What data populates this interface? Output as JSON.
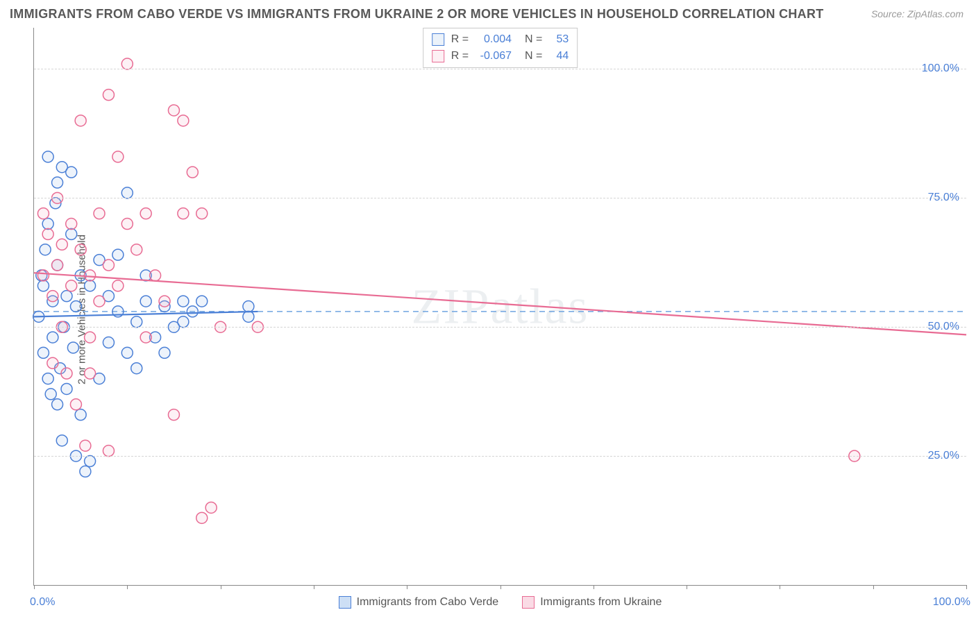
{
  "title": "IMMIGRANTS FROM CABO VERDE VS IMMIGRANTS FROM UKRAINE 2 OR MORE VEHICLES IN HOUSEHOLD CORRELATION CHART",
  "source": "Source: ZipAtlas.com",
  "watermark": "ZIPatlas",
  "ylabel": "2 or more Vehicles in Household",
  "chart": {
    "type": "scatter",
    "xlim": [
      0,
      100
    ],
    "ylim": [
      0,
      108
    ],
    "xticks": [
      0,
      10,
      20,
      30,
      40,
      50,
      60,
      70,
      80,
      90,
      100
    ],
    "xtick_labels": {
      "0": "0.0%",
      "100": "100.0%"
    },
    "ygrid": [
      25,
      50,
      75,
      100
    ],
    "ytick_labels": {
      "25": "25.0%",
      "50": "50.0%",
      "75": "75.0%",
      "100": "100.0%"
    },
    "background_color": "#ffffff",
    "grid_color": "#d5d5d5",
    "axis_color": "#888888",
    "label_color": "#555555",
    "tick_label_color": "#4a7fd6",
    "marker_radius": 8,
    "marker_stroke_width": 1.5,
    "marker_fill_opacity": 0.18,
    "dashed_line": {
      "color": "#6ea3e0",
      "y": 53,
      "dash": "8,6",
      "width": 1.5
    },
    "series": [
      {
        "name": "Immigrants from Cabo Verde",
        "stroke": "#4a7fd6",
        "fill": "#9abde8",
        "R": "0.004",
        "N": "53",
        "trend": {
          "x1": 0,
          "y1": 52,
          "x2": 24,
          "y2": 53,
          "width": 2.2
        },
        "points": [
          [
            0.5,
            52
          ],
          [
            0.8,
            60
          ],
          [
            1,
            45
          ],
          [
            1,
            58
          ],
          [
            1.2,
            65
          ],
          [
            1.5,
            70
          ],
          [
            1.5,
            40
          ],
          [
            1.8,
            37
          ],
          [
            2,
            55
          ],
          [
            2,
            48
          ],
          [
            2.3,
            74
          ],
          [
            2.5,
            62
          ],
          [
            2.5,
            35
          ],
          [
            2.8,
            42
          ],
          [
            3,
            28
          ],
          [
            3,
            81
          ],
          [
            3.2,
            50
          ],
          [
            3.5,
            56
          ],
          [
            3.5,
            38
          ],
          [
            4,
            80
          ],
          [
            4,
            68
          ],
          [
            4.2,
            46
          ],
          [
            4.5,
            25
          ],
          [
            4.5,
            54
          ],
          [
            5,
            60
          ],
          [
            5,
            33
          ],
          [
            5.5,
            22
          ],
          [
            6,
            24
          ],
          [
            6,
            58
          ],
          [
            7,
            63
          ],
          [
            7,
            40
          ],
          [
            8,
            56
          ],
          [
            8,
            47
          ],
          [
            9,
            53
          ],
          [
            9,
            64
          ],
          [
            10,
            45
          ],
          [
            10,
            76
          ],
          [
            11,
            51
          ],
          [
            11,
            42
          ],
          [
            12,
            55
          ],
          [
            12,
            60
          ],
          [
            13,
            48
          ],
          [
            14,
            54
          ],
          [
            14,
            45
          ],
          [
            15,
            50
          ],
          [
            16,
            55
          ],
          [
            16,
            51
          ],
          [
            17,
            53
          ],
          [
            18,
            55
          ],
          [
            23,
            52
          ],
          [
            23,
            54
          ],
          [
            2.5,
            78
          ],
          [
            1.5,
            83
          ]
        ]
      },
      {
        "name": "Immigrants from Ukraine",
        "stroke": "#e86b93",
        "fill": "#f5b3c6",
        "R": "-0.067",
        "N": "44",
        "trend": {
          "x1": 0,
          "y1": 60.5,
          "x2": 100,
          "y2": 48.5,
          "width": 2.2
        },
        "points": [
          [
            1,
            60
          ],
          [
            1,
            72
          ],
          [
            1.5,
            68
          ],
          [
            2,
            56
          ],
          [
            2,
            43
          ],
          [
            2.5,
            62
          ],
          [
            2.5,
            75
          ],
          [
            3,
            66
          ],
          [
            3,
            50
          ],
          [
            3.5,
            41
          ],
          [
            4,
            58
          ],
          [
            4,
            70
          ],
          [
            4.5,
            35
          ],
          [
            5,
            65
          ],
          [
            5,
            90
          ],
          [
            5.5,
            27
          ],
          [
            6,
            60
          ],
          [
            6,
            48
          ],
          [
            7,
            72
          ],
          [
            7,
            55
          ],
          [
            8,
            95
          ],
          [
            8,
            62
          ],
          [
            8,
            26
          ],
          [
            9,
            83
          ],
          [
            9,
            58
          ],
          [
            10,
            101
          ],
          [
            10,
            70
          ],
          [
            11,
            65
          ],
          [
            12,
            72
          ],
          [
            12,
            48
          ],
          [
            13,
            60
          ],
          [
            14,
            55
          ],
          [
            15,
            92
          ],
          [
            15,
            33
          ],
          [
            16,
            90
          ],
          [
            17,
            80
          ],
          [
            18,
            72
          ],
          [
            18,
            13
          ],
          [
            19,
            15
          ],
          [
            20,
            50
          ],
          [
            24,
            50
          ],
          [
            16,
            72
          ],
          [
            88,
            25
          ],
          [
            6,
            41
          ]
        ]
      }
    ],
    "bottom_legend": [
      {
        "label": "Immigrants from Cabo Verde",
        "stroke": "#4a7fd6",
        "fill": "#cddff5"
      },
      {
        "label": "Immigrants from Ukraine",
        "stroke": "#e86b93",
        "fill": "#fadbe5"
      }
    ]
  }
}
